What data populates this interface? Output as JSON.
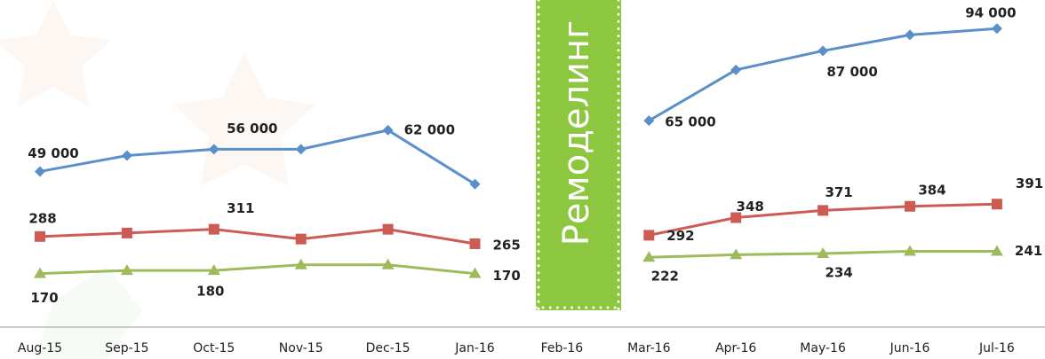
{
  "chart_data": {
    "type": "line",
    "categories": [
      "Aug-15",
      "Sep-15",
      "Oct-15",
      "Nov-15",
      "Dec-15",
      "Jan-16",
      "Feb-16",
      "Mar-16",
      "Apr-16",
      "May-16",
      "Jun-16",
      "Jul-16"
    ],
    "annotation": "Ремоделинг",
    "ylim": [
      0,
      1040
    ],
    "y2lim": [
      0,
      103000
    ],
    "series": [
      {
        "name": null,
        "color": "#5b8fc9",
        "axis": "y2",
        "marker": "diamond",
        "values": [
          49000,
          54000,
          56000,
          56000,
          62000,
          45000,
          null,
          65000,
          81000,
          87000,
          92000,
          94000
        ],
        "value_labels": [
          "49 000",
          null,
          "56 000",
          null,
          "62 000",
          null,
          null,
          "65 000",
          null,
          "87 000",
          null,
          "94 000"
        ]
      },
      {
        "name": null,
        "color": "#cd5b54",
        "axis": "y",
        "marker": "square",
        "values": [
          288,
          299,
          311,
          280,
          311,
          265,
          null,
          292,
          348,
          371,
          384,
          391
        ],
        "value_labels": [
          "288",
          null,
          "311",
          null,
          null,
          "265",
          null,
          "292",
          "348",
          "371",
          "384",
          "391"
        ]
      },
      {
        "name": null,
        "color": "#9dbb5a",
        "axis": "y",
        "marker": "triangle",
        "values": [
          170,
          180,
          180,
          198,
          198,
          170,
          null,
          222,
          230,
          234,
          241,
          241
        ],
        "value_labels": [
          "170",
          null,
          "180",
          null,
          null,
          "170",
          null,
          "222",
          null,
          "234",
          null,
          "241"
        ]
      }
    ]
  }
}
